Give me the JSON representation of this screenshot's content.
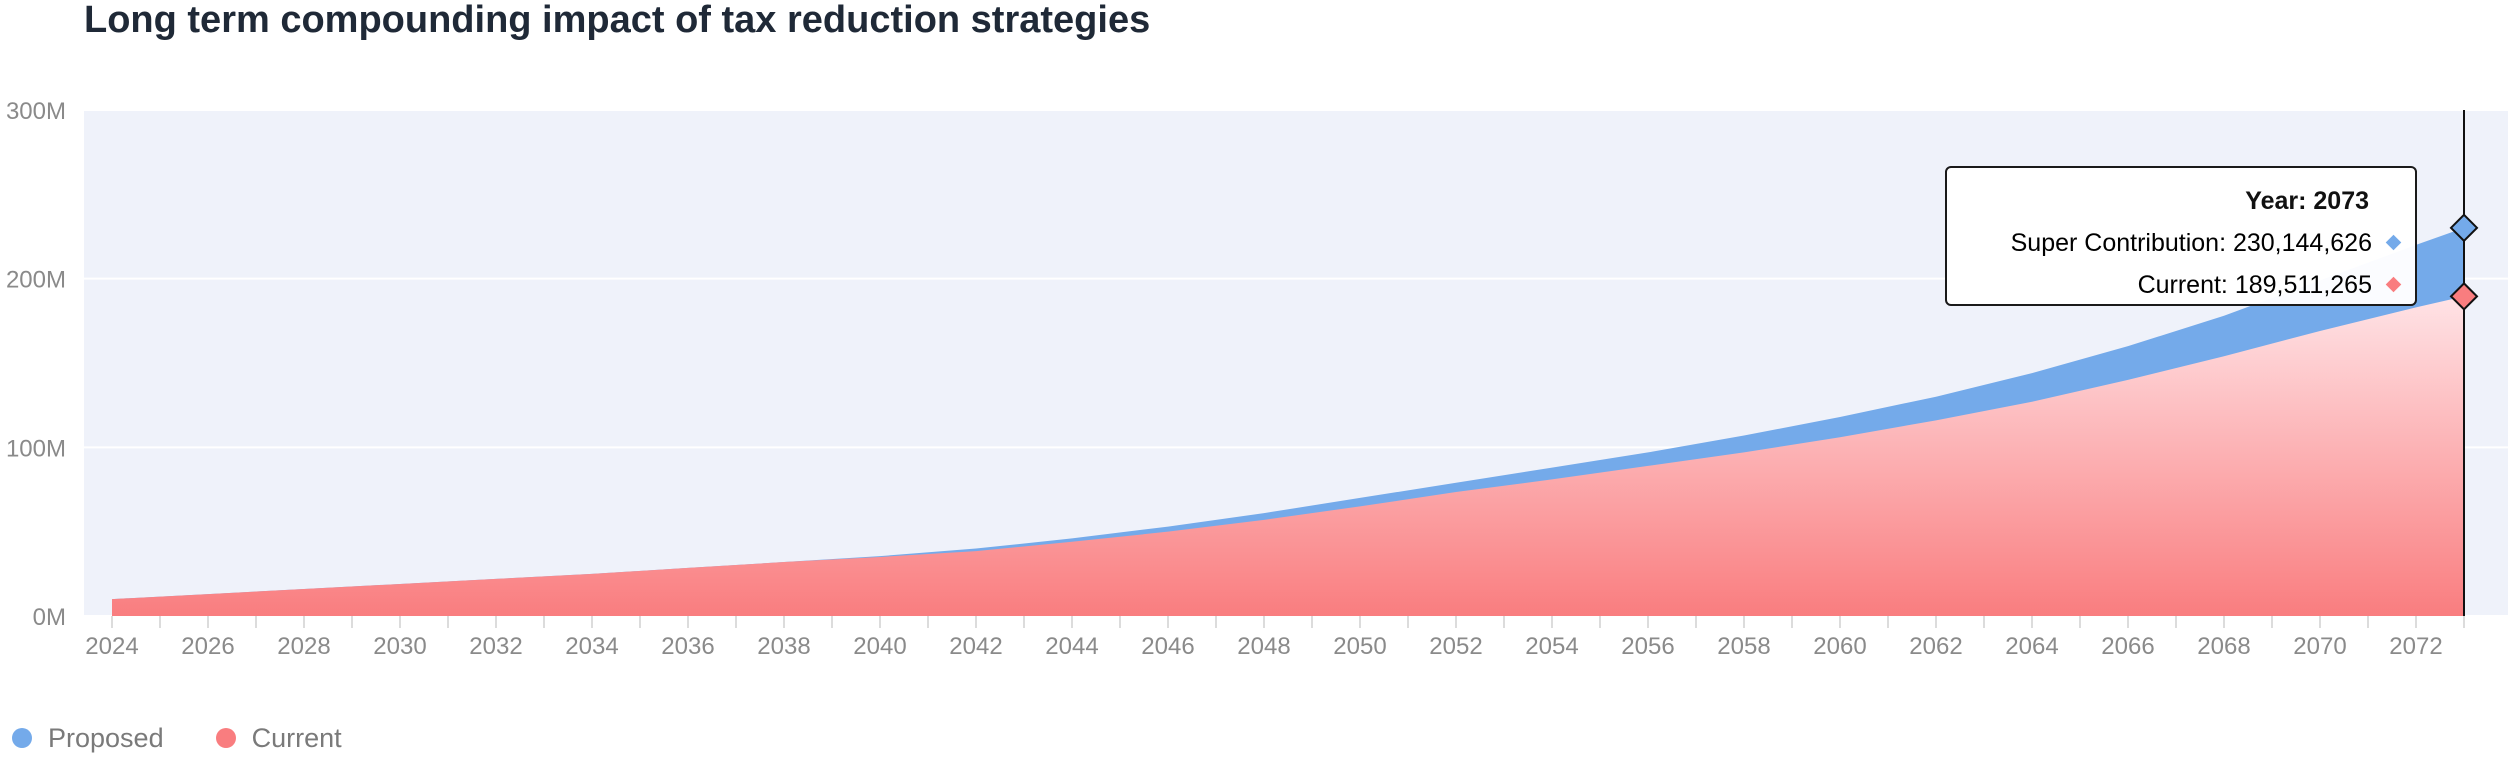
{
  "title": "Long term compounding impact of tax reduction strategies",
  "colors": {
    "proposed": "#74aaea",
    "current": "#f97d7f",
    "plot_background": "#eff2fa",
    "gridline": "#ffffff"
  },
  "legend": {
    "items": [
      {
        "label": "Proposed",
        "color": "#74aaea"
      },
      {
        "label": "Current",
        "color": "#f97d7f"
      }
    ]
  },
  "tooltip": {
    "year_label": "Year: 2073",
    "rows": [
      {
        "text": "Super Contribution: 230,144,626",
        "color": "#5a8fd6",
        "marker_color": "#74aaea"
      },
      {
        "text": "Current: 189,511,265",
        "color": "#f47a7e",
        "marker_color": "#f97d7f"
      }
    ]
  },
  "chart_data": {
    "type": "area",
    "title": "Long term compounding impact of tax reduction strategies",
    "xlabel": "",
    "ylabel": "",
    "xlim": [
      2024,
      2073
    ],
    "ylim": [
      0,
      300000000
    ],
    "x_tick_labels": [
      "2024",
      "2026",
      "2028",
      "2030",
      "2032",
      "2034",
      "2036",
      "2038",
      "2040",
      "2042",
      "2044",
      "2046",
      "2048",
      "2050",
      "2052",
      "2054",
      "2056",
      "2058",
      "2060",
      "2062",
      "2064",
      "2066",
      "2068",
      "2070",
      "2072"
    ],
    "y_tick_labels": [
      "0M",
      "100M",
      "200M",
      "300M"
    ],
    "y_ticks": [
      0,
      100000000,
      200000000,
      300000000
    ],
    "grid": true,
    "legend_position": "bottom-left",
    "x": [
      2024,
      2026,
      2028,
      2030,
      2032,
      2034,
      2036,
      2038,
      2040,
      2042,
      2044,
      2046,
      2048,
      2050,
      2052,
      2054,
      2056,
      2058,
      2060,
      2062,
      2064,
      2066,
      2068,
      2070,
      2072,
      2073
    ],
    "series": [
      {
        "name": "Proposed",
        "values": [
          10000000,
          13000000,
          16000000,
          19000000,
          22000000,
          25000000,
          28500000,
          32000000,
          35500000,
          40000000,
          46000000,
          53000000,
          61000000,
          70000000,
          79000000,
          88000000,
          97000000,
          107000000,
          118000000,
          130000000,
          144000000,
          160000000,
          178000000,
          199000000,
          220000000,
          230144626
        ]
      },
      {
        "name": "Current",
        "values": [
          10000000,
          13000000,
          16000000,
          19000000,
          22000000,
          25000000,
          28500000,
          32000000,
          35000000,
          38500000,
          44000000,
          50000000,
          57000000,
          65000000,
          73500000,
          81000000,
          89000000,
          97000000,
          106000000,
          116000000,
          127000000,
          140000000,
          154000000,
          169000000,
          183000000,
          189511265
        ]
      }
    ]
  }
}
